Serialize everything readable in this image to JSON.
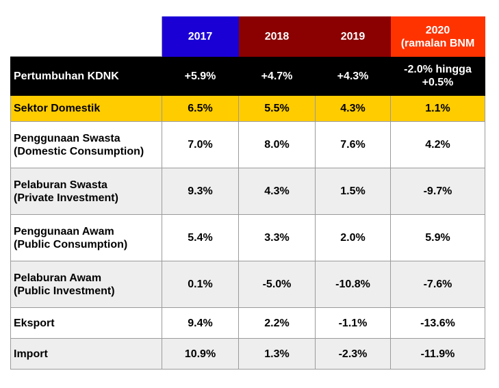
{
  "header": {
    "blank": "",
    "y2017": "2017",
    "y2018": "2018",
    "y2019": "2019",
    "y2020_line1": "2020",
    "y2020_line2": "(ramalan BNM"
  },
  "growth": {
    "label": "Pertumbuhan KDNK",
    "v2017": "+5.9%",
    "v2018": "+4.7%",
    "v2019": "+4.3%",
    "v2020_line1": "-2.0% hingga",
    "v2020_line2": "+0.5%"
  },
  "domestic": {
    "label": "Sektor Domestik",
    "v2017": "6.5%",
    "v2018": "5.5%",
    "v2019": "4.3%",
    "v2020": "1.1%"
  },
  "rows": [
    {
      "line1": "Penggunaan Swasta",
      "line2": "(Domestic Consumption)",
      "v2017": "7.0%",
      "v2018": "8.0%",
      "v2019": "7.6%",
      "v2020": "4.2%"
    },
    {
      "line1": "Pelaburan Swasta",
      "line2": "(Private Investment)",
      "v2017": "9.3%",
      "v2018": "4.3%",
      "v2019": "1.5%",
      "v2020": "-9.7%"
    },
    {
      "line1": "Penggunaan Awam",
      "line2": "(Public Consumption)",
      "v2017": "5.4%",
      "v2018": "3.3%",
      "v2019": "2.0%",
      "v2020": "5.9%"
    },
    {
      "line1": "Pelaburan Awam",
      "line2": "(Public Investment)",
      "v2017": "0.1%",
      "v2018": "-5.0%",
      "v2019": "-10.8%",
      "v2020": "-7.6%"
    },
    {
      "line1": "Eksport",
      "line2": "",
      "v2017": "9.4%",
      "v2018": "2.2%",
      "v2019": "-1.1%",
      "v2020": "-13.6%"
    },
    {
      "line1": "Import",
      "line2": "",
      "v2017": "10.9%",
      "v2018": "1.3%",
      "v2019": "-2.3%",
      "v2020": "-11.9%"
    }
  ],
  "colors": {
    "header_2017": "#1b00d6",
    "header_2018": "#8b0000",
    "header_2019": "#8b0000",
    "header_2020": "#ff3300",
    "growth_row": "#000000",
    "domestic_row": "#ffcc00",
    "alt_row": "#eeeeee"
  }
}
